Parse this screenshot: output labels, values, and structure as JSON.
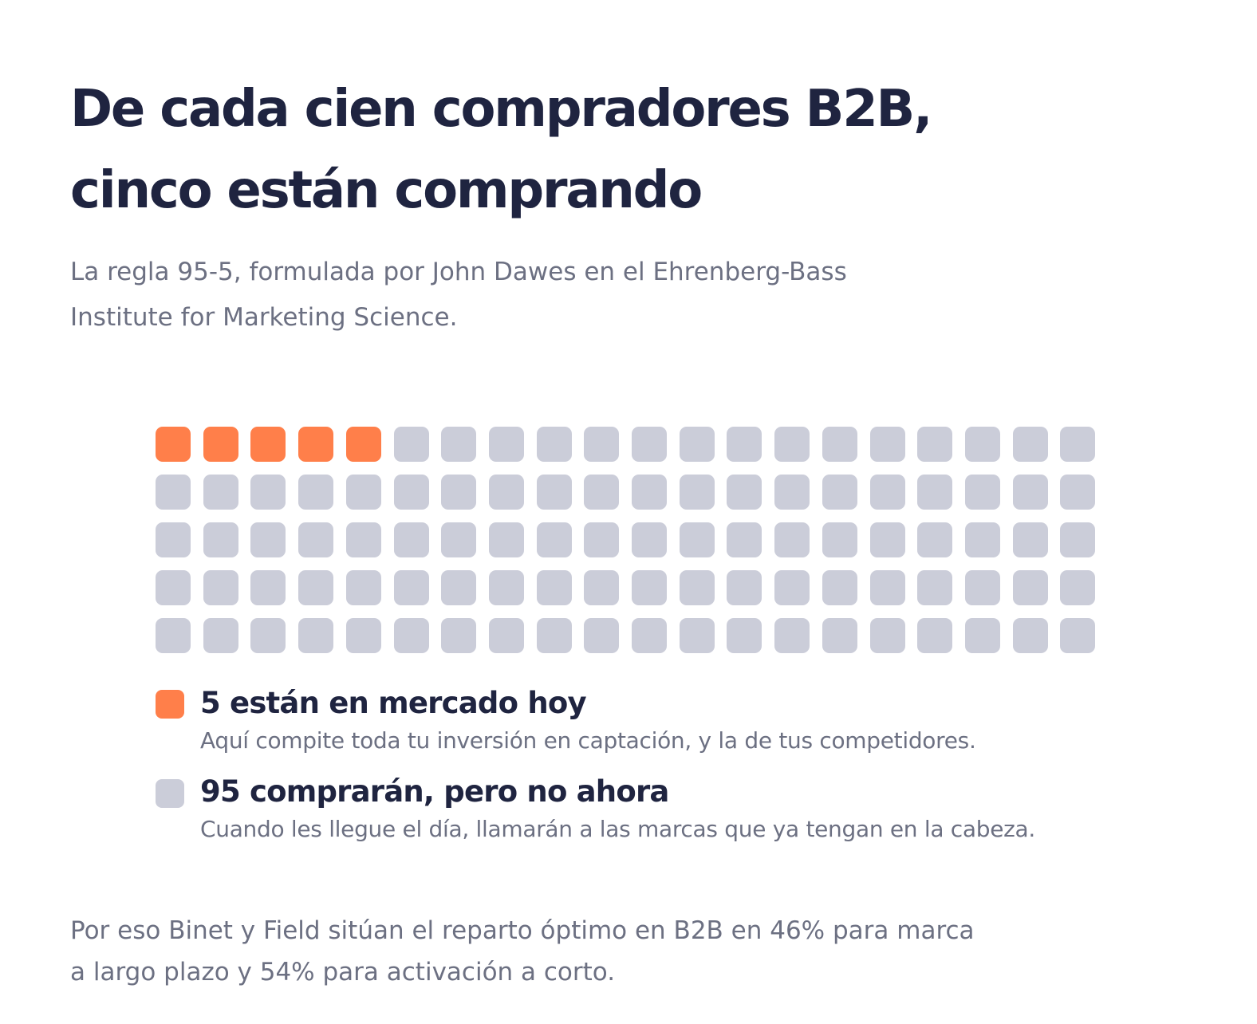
{
  "title": {
    "line1": "De cada cien compradores B2B,",
    "line2": "cinco están comprando"
  },
  "subtitle": {
    "line1": "La regla 95-5, formulada por John Dawes en el Ehrenberg-Bass",
    "line2": "Institute for Marketing Science."
  },
  "chart_data": {
    "type": "waffle",
    "total": 100,
    "rows": 5,
    "columns": 20,
    "series": [
      {
        "name": "5 están en mercado hoy",
        "value": 5,
        "color": "#ff7f4a",
        "description": "Aquí compite toda tu inversión en captación, y la de tus competidores."
      },
      {
        "name": "95 comprarán, pero no ahora",
        "value": 95,
        "color": "#cbcdd9",
        "description": "Cuando les llegue el día, llamarán a las marcas que ya tengan en la cabeza."
      }
    ],
    "legend_position": "bottom-left"
  },
  "footer": {
    "line1": "Por eso Binet y Field sitúan el reparto óptimo en B2B en 46% para marca",
    "line2": "a largo plazo y 54% para activación a corto."
  }
}
